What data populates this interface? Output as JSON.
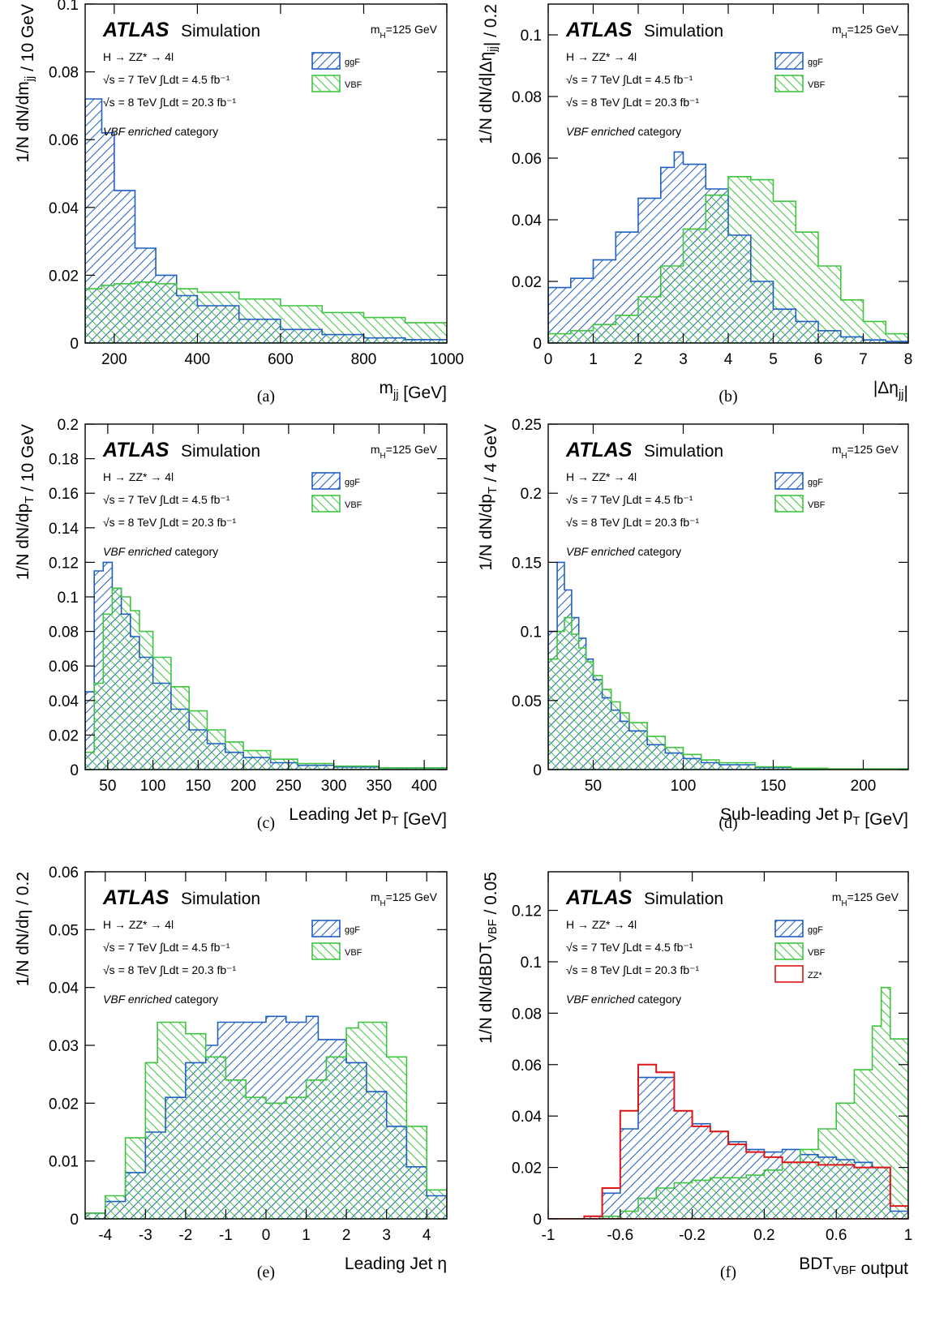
{
  "figure": {
    "legend_entries": [
      "ggF",
      "VBF",
      "ZZ*"
    ],
    "colors": {
      "ggF": "#1f5fbf",
      "VBF": "#3fc43f",
      "ZZ*": "#e01515"
    },
    "atlas_label": "ATLAS",
    "simulation_label": "Simulation",
    "mass_label": "m_H=125 GeV",
    "process_label": "H → ZZ* → 4l",
    "energy_7": "√s = 7 TeV  ∫Ldt = 4.5 fb⁻¹",
    "energy_8": "√s = 8 TeV  ∫Ldt = 20.3 fb⁻¹",
    "category_label_italic": "VBF enriched",
    "category_label_rest": "category"
  },
  "chart_data": [
    {
      "id": "a",
      "caption": "(a)",
      "type": "histogram",
      "xlabel": "m_jj [GeV]",
      "ylabel": "1/N dN/dm_jj / 10 GeV",
      "xlim": [
        130,
        1000
      ],
      "ylim": [
        0,
        0.1
      ],
      "xticks": [
        200,
        400,
        600,
        800,
        1000
      ],
      "xtick_labels": [
        "200",
        "400",
        "600",
        "800",
        "1000"
      ],
      "yticks": [
        0,
        0.02,
        0.04,
        0.06,
        0.08,
        0.1
      ],
      "ytick_labels": [
        "0",
        "0.02",
        "0.04",
        "0.06",
        "0.08",
        "0.1"
      ],
      "legend": [
        "ggF",
        "VBF"
      ],
      "series": [
        {
          "name": "ggF",
          "x": [
            130,
            170,
            200,
            250,
            300,
            350,
            400,
            500,
            600,
            700,
            800,
            900,
            1000
          ],
          "y": [
            0.072,
            0.062,
            0.045,
            0.028,
            0.02,
            0.014,
            0.011,
            0.007,
            0.004,
            0.0025,
            0.0015,
            0.001,
            0.0007
          ]
        },
        {
          "name": "VBF",
          "x": [
            130,
            170,
            200,
            250,
            300,
            350,
            400,
            500,
            600,
            700,
            800,
            900,
            1000
          ],
          "y": [
            0.016,
            0.017,
            0.0175,
            0.018,
            0.0175,
            0.016,
            0.015,
            0.013,
            0.011,
            0.009,
            0.0075,
            0.006,
            0.0045
          ]
        }
      ]
    },
    {
      "id": "b",
      "caption": "(b)",
      "type": "histogram",
      "xlabel": "|Δη_jj|",
      "ylabel": "1/N dN/d|Δη_jj| / 0.2",
      "xlim": [
        0,
        8
      ],
      "ylim": [
        0,
        0.11
      ],
      "xticks": [
        0,
        1,
        2,
        3,
        4,
        5,
        6,
        7,
        8
      ],
      "xtick_labels": [
        "0",
        "1",
        "2",
        "3",
        "4",
        "5",
        "6",
        "7",
        "8"
      ],
      "yticks": [
        0,
        0.02,
        0.04,
        0.06,
        0.08,
        0.1
      ],
      "ytick_labels": [
        "0",
        "0.02",
        "0.04",
        "0.06",
        "0.08",
        "0.1"
      ],
      "legend": [
        "ggF",
        "VBF"
      ],
      "series": [
        {
          "name": "ggF",
          "x": [
            0,
            0.5,
            1,
            1.5,
            2,
            2.5,
            2.8,
            3,
            3.5,
            4,
            4.5,
            5,
            5.5,
            6,
            6.5,
            7,
            7.5,
            8
          ],
          "y": [
            0.018,
            0.021,
            0.027,
            0.036,
            0.047,
            0.057,
            0.062,
            0.058,
            0.05,
            0.035,
            0.02,
            0.011,
            0.007,
            0.004,
            0.002,
            0.001,
            0.0005,
            0.0002
          ]
        },
        {
          "name": "VBF",
          "x": [
            0,
            0.5,
            1,
            1.5,
            2,
            2.5,
            3,
            3.5,
            4,
            4.5,
            5,
            5.5,
            6,
            6.5,
            7,
            7.5,
            8
          ],
          "y": [
            0.003,
            0.004,
            0.006,
            0.009,
            0.015,
            0.025,
            0.037,
            0.048,
            0.054,
            0.053,
            0.046,
            0.036,
            0.025,
            0.014,
            0.007,
            0.003,
            0.001
          ]
        }
      ]
    },
    {
      "id": "c",
      "caption": "(c)",
      "type": "histogram",
      "xlabel": "Leading Jet p_T [GeV]",
      "ylabel": "1/N dN/dp_T / 10 GeV",
      "xlim": [
        25,
        425
      ],
      "ylim": [
        0,
        0.2
      ],
      "xticks": [
        50,
        100,
        150,
        200,
        250,
        300,
        350,
        400
      ],
      "xtick_labels": [
        "50",
        "100",
        "150",
        "200",
        "250",
        "300",
        "350",
        "400"
      ],
      "yticks": [
        0,
        0.02,
        0.04,
        0.06,
        0.08,
        0.1,
        0.12,
        0.14,
        0.16,
        0.18,
        0.2
      ],
      "ytick_labels": [
        "0",
        "0.02",
        "0.04",
        "0.06",
        "0.08",
        "0.1",
        "0.12",
        "0.14",
        "0.16",
        "0.18",
        "0.2"
      ],
      "legend": [
        "ggF",
        "VBF"
      ],
      "series": [
        {
          "name": "ggF",
          "x": [
            25,
            35,
            45,
            55,
            65,
            75,
            85,
            100,
            120,
            140,
            160,
            180,
            200,
            230,
            260,
            300,
            350,
            425
          ],
          "y": [
            0.045,
            0.115,
            0.12,
            0.105,
            0.09,
            0.077,
            0.065,
            0.05,
            0.035,
            0.023,
            0.015,
            0.01,
            0.007,
            0.004,
            0.0025,
            0.0015,
            0.001,
            0.0005
          ]
        },
        {
          "name": "VBF",
          "x": [
            25,
            35,
            45,
            55,
            65,
            75,
            85,
            100,
            120,
            140,
            160,
            180,
            200,
            230,
            260,
            300,
            350,
            425
          ],
          "y": [
            0.01,
            0.05,
            0.09,
            0.105,
            0.1,
            0.092,
            0.08,
            0.065,
            0.048,
            0.034,
            0.023,
            0.016,
            0.011,
            0.006,
            0.0035,
            0.002,
            0.001,
            0.0005
          ]
        }
      ]
    },
    {
      "id": "d",
      "caption": "(d)",
      "type": "histogram",
      "xlabel": "Sub-leading Jet p_T [GeV]",
      "ylabel": "1/N dN/dp_T / 4 GeV",
      "xlim": [
        25,
        225
      ],
      "ylim": [
        0,
        0.25
      ],
      "xticks": [
        50,
        100,
        150,
        200
      ],
      "xtick_labels": [
        "50",
        "100",
        "150",
        "200"
      ],
      "yticks": [
        0,
        0.05,
        0.1,
        0.15,
        0.2,
        0.25
      ],
      "ytick_labels": [
        "0",
        "0.05",
        "0.1",
        "0.15",
        "0.2",
        "0.25"
      ],
      "legend": [
        "ggF",
        "VBF"
      ],
      "series": [
        {
          "name": "ggF",
          "x": [
            25,
            30,
            34,
            38,
            42,
            46,
            50,
            55,
            60,
            65,
            70,
            80,
            90,
            100,
            110,
            120,
            140,
            160,
            180,
            225
          ],
          "y": [
            0.1,
            0.15,
            0.13,
            0.11,
            0.095,
            0.08,
            0.065,
            0.052,
            0.043,
            0.035,
            0.028,
            0.018,
            0.012,
            0.008,
            0.005,
            0.0035,
            0.0015,
            0.0008,
            0.0004,
            0.0002
          ]
        },
        {
          "name": "VBF",
          "x": [
            25,
            30,
            34,
            38,
            42,
            46,
            50,
            55,
            60,
            65,
            70,
            80,
            90,
            100,
            110,
            120,
            140,
            160,
            180,
            225
          ],
          "y": [
            0.08,
            0.1,
            0.11,
            0.098,
            0.088,
            0.078,
            0.068,
            0.058,
            0.049,
            0.041,
            0.034,
            0.024,
            0.016,
            0.011,
            0.007,
            0.005,
            0.002,
            0.001,
            0.0005,
            0.0002
          ]
        }
      ]
    },
    {
      "id": "e",
      "caption": "(e)",
      "type": "histogram",
      "xlabel": "Leading Jet η",
      "ylabel": "1/N dN/dη / 0.2",
      "xlim": [
        -4.5,
        4.5
      ],
      "ylim": [
        0,
        0.06
      ],
      "xticks": [
        -4,
        -3,
        -2,
        -1,
        0,
        1,
        2,
        3,
        4
      ],
      "xtick_labels": [
        "-4",
        "-3",
        "-2",
        "-1",
        "0",
        "1",
        "2",
        "3",
        "4"
      ],
      "yticks": [
        0,
        0.01,
        0.02,
        0.03,
        0.04,
        0.05,
        0.06
      ],
      "ytick_labels": [
        "0",
        "0.01",
        "0.02",
        "0.03",
        "0.04",
        "0.05",
        "0.06"
      ],
      "legend": [
        "ggF",
        "VBF"
      ],
      "series": [
        {
          "name": "ggF",
          "x": [
            -4.5,
            -4,
            -3.5,
            -3,
            -2.5,
            -2,
            -1.5,
            -1.2,
            -0.5,
            0,
            0.5,
            1,
            1.3,
            2,
            2.5,
            3,
            3.5,
            4,
            4.5
          ],
          "y": [
            0.001,
            0.003,
            0.008,
            0.015,
            0.021,
            0.027,
            0.03,
            0.034,
            0.034,
            0.035,
            0.034,
            0.035,
            0.031,
            0.027,
            0.022,
            0.016,
            0.009,
            0.004,
            0.001
          ]
        },
        {
          "name": "VBF",
          "x": [
            -4.5,
            -4,
            -3.5,
            -3,
            -2.7,
            -2.3,
            -2,
            -1.5,
            -1,
            -0.5,
            0,
            0.5,
            1,
            1.5,
            2,
            2.3,
            2.7,
            3,
            3.5,
            4,
            4.5
          ],
          "y": [
            0.001,
            0.004,
            0.014,
            0.027,
            0.034,
            0.034,
            0.032,
            0.028,
            0.024,
            0.021,
            0.02,
            0.021,
            0.024,
            0.028,
            0.033,
            0.034,
            0.034,
            0.028,
            0.016,
            0.005,
            0.001
          ]
        }
      ]
    },
    {
      "id": "f",
      "caption": "(f)",
      "type": "histogram",
      "xlabel": "BDT_VBF output",
      "ylabel": "1/N dN/dBDT_VBF / 0.05",
      "xlim": [
        -1,
        1
      ],
      "ylim": [
        0,
        0.135
      ],
      "xticks": [
        -1,
        -0.6,
        -0.2,
        0.2,
        0.6,
        1
      ],
      "xtick_labels": [
        "-1",
        "-0.6",
        "-0.2",
        "0.2",
        "0.6",
        "1"
      ],
      "yticks": [
        0,
        0.02,
        0.04,
        0.06,
        0.08,
        0.1,
        0.12
      ],
      "ytick_labels": [
        "0",
        "0.02",
        "0.04",
        "0.06",
        "0.08",
        "0.1",
        "0.12"
      ],
      "legend": [
        "ggF",
        "VBF",
        "ZZ*"
      ],
      "series": [
        {
          "name": "ggF",
          "x": [
            -1,
            -0.8,
            -0.7,
            -0.6,
            -0.5,
            -0.4,
            -0.3,
            -0.2,
            -0.1,
            0,
            0.1,
            0.2,
            0.3,
            0.4,
            0.5,
            0.6,
            0.7,
            0.8,
            0.9,
            1
          ],
          "y": [
            0,
            0.001,
            0.01,
            0.035,
            0.055,
            0.055,
            0.042,
            0.037,
            0.034,
            0.03,
            0.027,
            0.026,
            0.027,
            0.025,
            0.024,
            0.023,
            0.022,
            0.02,
            0.003,
            0
          ]
        },
        {
          "name": "VBF",
          "x": [
            -1,
            -0.7,
            -0.6,
            -0.5,
            -0.4,
            -0.3,
            -0.2,
            -0.1,
            0,
            0.1,
            0.2,
            0.3,
            0.4,
            0.5,
            0.6,
            0.7,
            0.8,
            0.85,
            0.9,
            1
          ],
          "y": [
            0,
            0.001,
            0.003,
            0.008,
            0.012,
            0.014,
            0.015,
            0.016,
            0.016,
            0.017,
            0.019,
            0.022,
            0.027,
            0.035,
            0.045,
            0.058,
            0.075,
            0.09,
            0.07,
            0
          ]
        },
        {
          "name": "ZZ*",
          "x": [
            -1,
            -0.8,
            -0.7,
            -0.6,
            -0.5,
            -0.4,
            -0.3,
            -0.2,
            -0.1,
            0,
            0.1,
            0.2,
            0.3,
            0.4,
            0.5,
            0.6,
            0.7,
            0.8,
            0.9,
            1
          ],
          "y": [
            0,
            0.001,
            0.012,
            0.042,
            0.06,
            0.057,
            0.042,
            0.036,
            0.034,
            0.029,
            0.026,
            0.024,
            0.022,
            0.022,
            0.021,
            0.021,
            0.02,
            0.02,
            0.005,
            0
          ]
        }
      ]
    }
  ]
}
